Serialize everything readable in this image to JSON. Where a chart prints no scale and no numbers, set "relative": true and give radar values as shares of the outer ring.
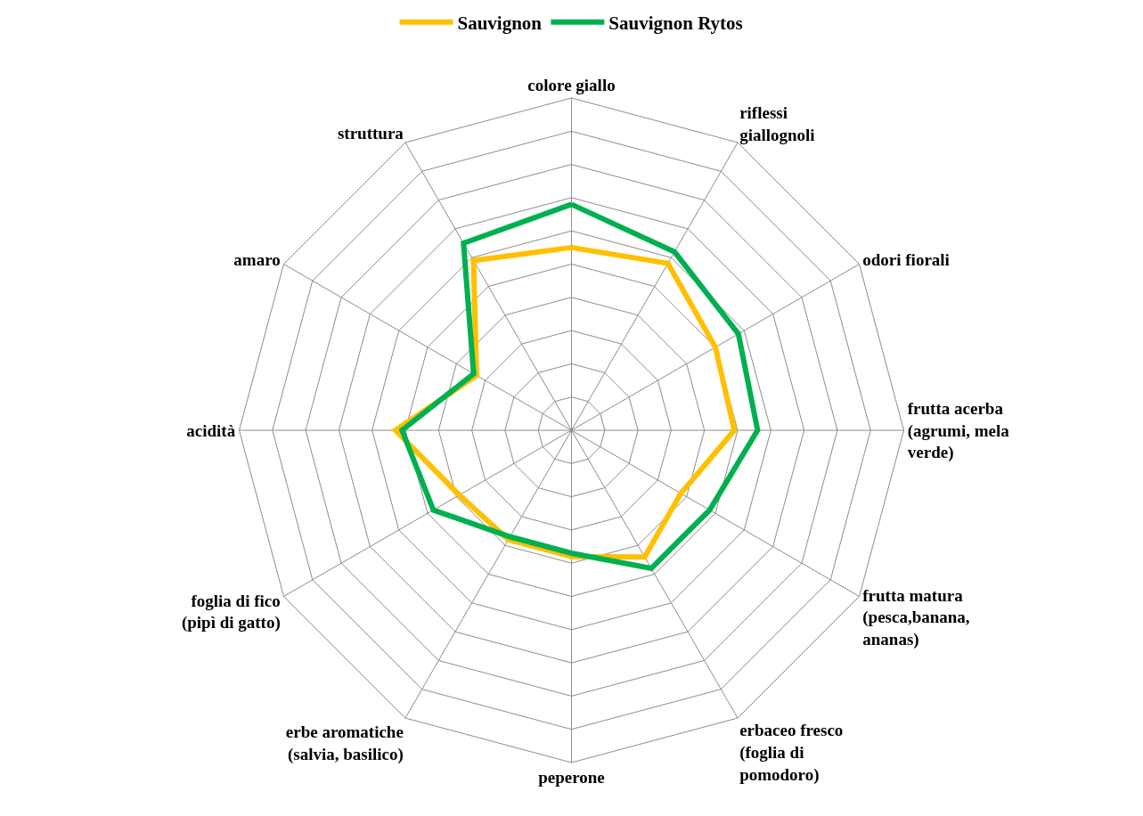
{
  "chart_data": {
    "type": "radar",
    "relative": true,
    "grid": true,
    "legend": "top",
    "line_style": "solid",
    "marker": "none",
    "categories": [
      "colore giallo",
      "riflessi giallognoli",
      "odori fiorali",
      "frutta acerba (agrumi, mela verde)",
      "frutta matura (pesca,banana, ananas)",
      "erbaceo fresco (foglia di pomodoro)",
      "peperone",
      "erbe aromatiche (salvia, basilico)",
      "foglia di fico (pipì di gatto)",
      "acidità",
      "amaro",
      "struttura"
    ],
    "series": [
      {
        "name": "Sauvignon",
        "color": "#ffc000",
        "values": [
          0.55,
          0.58,
          0.5,
          0.49,
          0.38,
          0.44,
          0.38,
          0.38,
          0.39,
          0.53,
          0.33,
          0.59
        ]
      },
      {
        "name": "Sauvignon Rytos",
        "color": "#00b050",
        "values": [
          0.68,
          0.62,
          0.58,
          0.56,
          0.48,
          0.48,
          0.37,
          0.37,
          0.48,
          0.51,
          0.34,
          0.65
        ]
      }
    ]
  }
}
